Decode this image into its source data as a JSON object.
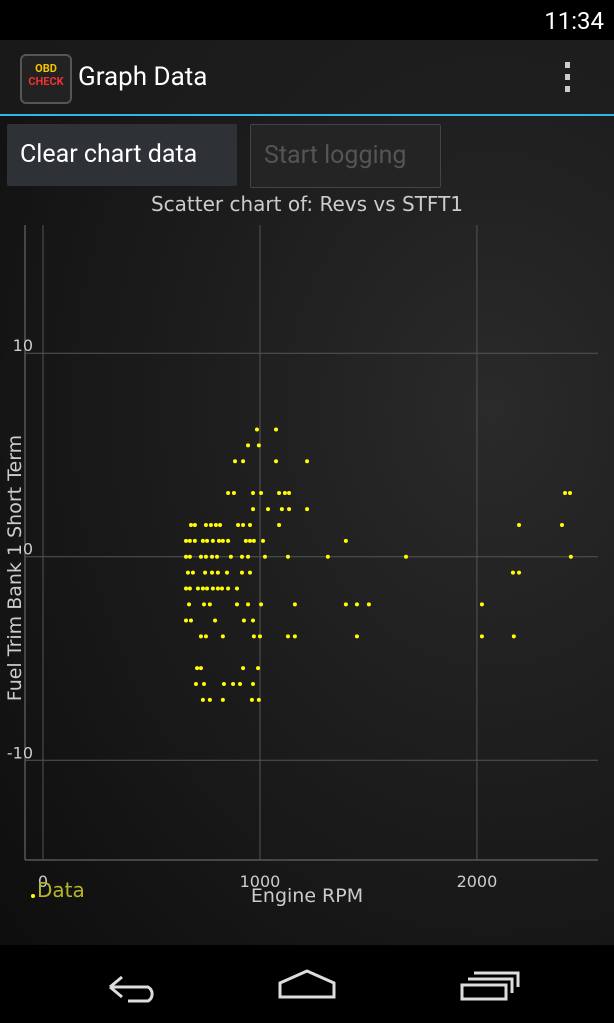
{
  "status_bar": {
    "time": "11:34"
  },
  "action_bar": {
    "icon_labels": [
      "OBD",
      "CHECK"
    ],
    "title": "Graph Data"
  },
  "buttons": [
    "Clear chart data",
    "Start logging"
  ],
  "chart_data": {
    "type": "scatter",
    "title": "Scatter chart of: Revs vs STFT1",
    "x_label": "Engine RPM",
    "y_label": "Fuel Trim Bank 1 Short Term",
    "xlim": [
      -83,
      2558
    ],
    "ylim": [
      -14.9,
      16.3
    ],
    "xticks": [
      0,
      1000,
      2000
    ],
    "yticks": [
      -10,
      0,
      10
    ],
    "grid": true,
    "legend": "bottom-left",
    "series": [
      {
        "name": "Data",
        "color": "#ffff00",
        "x": [
          986,
          1074,
          945,
          995,
          885,
          922,
          1074,
          1217,
          853,
          880,
          968,
          1005,
          1088,
          1115,
          1134,
          2406,
          2429,
          968,
          1037,
          1101,
          1134,
          1217,
          682,
          700,
          751,
          774,
          797,
          816,
          899,
          922,
          954,
          1088,
          2194,
          2392,
          659,
          677,
          700,
          737,
          756,
          783,
          811,
          829,
          853,
          935,
          954,
          972,
          1014,
          1396,
          659,
          677,
          728,
          751,
          779,
          802,
          866,
          917,
          945,
          1023,
          1129,
          1313,
          1673,
          2433,
          668,
          691,
          747,
          779,
          806,
          848,
          917,
          954,
          2166,
          2194,
          659,
          677,
          714,
          737,
          756,
          783,
          806,
          825,
          853,
          894,
          673,
          742,
          769,
          894,
          945,
          1005,
          1161,
          1396,
          1447,
          1502,
          2023,
          659,
          682,
          793,
          926,
          968,
          728,
          751,
          829,
          972,
          1000,
          1129,
          1161,
          1447,
          2023,
          2170,
          710,
          728,
          922,
          991,
          705,
          742,
          834,
          876,
          908,
          968,
          737,
          769,
          829,
          963,
          995
        ],
        "y": [
          6.25,
          6.25,
          5.47,
          5.47,
          4.69,
          4.69,
          4.69,
          4.69,
          3.13,
          3.13,
          3.13,
          3.13,
          3.13,
          3.13,
          3.13,
          3.13,
          3.13,
          2.34,
          2.34,
          2.34,
          2.34,
          2.34,
          1.56,
          1.56,
          1.56,
          1.56,
          1.56,
          1.56,
          1.56,
          1.56,
          1.56,
          1.56,
          1.56,
          1.56,
          0.78,
          0.78,
          0.78,
          0.78,
          0.78,
          0.78,
          0.78,
          0.78,
          0.78,
          0.78,
          0.78,
          0.78,
          0.78,
          0.78,
          0,
          0,
          0,
          0,
          0,
          0,
          0,
          0,
          0,
          0,
          0,
          0,
          0,
          0,
          -0.78,
          -0.78,
          -0.78,
          -0.78,
          -0.78,
          -0.78,
          -0.78,
          -0.78,
          -0.78,
          -0.78,
          -1.56,
          -1.56,
          -1.56,
          -1.56,
          -1.56,
          -1.56,
          -1.56,
          -1.56,
          -1.56,
          -1.56,
          -2.34,
          -2.34,
          -2.34,
          -2.34,
          -2.34,
          -2.34,
          -2.34,
          -2.34,
          -2.34,
          -2.34,
          -2.34,
          -3.13,
          -3.13,
          -3.13,
          -3.13,
          -3.13,
          -3.91,
          -3.91,
          -3.91,
          -3.91,
          -3.91,
          -3.91,
          -3.91,
          -3.91,
          -3.91,
          -3.91,
          -5.47,
          -5.47,
          -5.47,
          -5.47,
          -6.25,
          -6.25,
          -6.25,
          -6.25,
          -6.25,
          -6.25,
          -7.03,
          -7.03,
          -7.03,
          -7.03,
          -7.03
        ]
      }
    ]
  }
}
